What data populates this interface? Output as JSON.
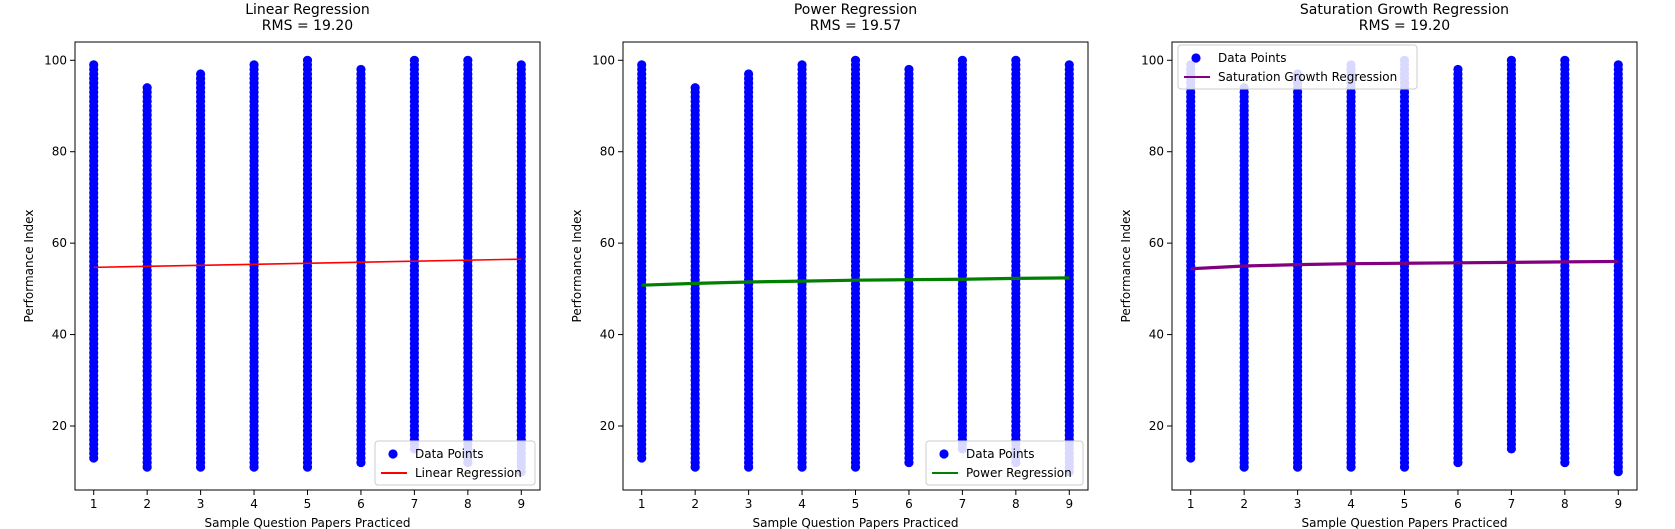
{
  "chart_data": [
    {
      "type": "scatter",
      "title": "Linear Regression",
      "subtitle": "RMS = 19.20",
      "xlabel": "Sample Question Papers Practiced",
      "ylabel": "Performance Index",
      "xlim": [
        0.65,
        9.35
      ],
      "ylim": [
        6,
        104
      ],
      "xticks": [
        1,
        2,
        3,
        4,
        5,
        6,
        7,
        8,
        9
      ],
      "yticks": [
        20,
        40,
        60,
        80,
        100
      ],
      "legend_position": "lower-right",
      "point_color": "#0000ff",
      "points": [
        {
          "x": 1,
          "min": 13,
          "max": 99
        },
        {
          "x": 2,
          "min": 11,
          "max": 94
        },
        {
          "x": 3,
          "min": 11,
          "max": 97
        },
        {
          "x": 4,
          "min": 11,
          "max": 99
        },
        {
          "x": 5,
          "min": 11,
          "max": 100
        },
        {
          "x": 6,
          "min": 12,
          "max": 98
        },
        {
          "x": 7,
          "min": 15,
          "max": 100
        },
        {
          "x": 8,
          "min": 12,
          "max": 100
        },
        {
          "x": 9,
          "min": 10,
          "max": 99
        }
      ],
      "series": [
        {
          "name": "Data Points",
          "kind": "scatter",
          "color": "#0000ff"
        },
        {
          "name": "Linear Regression",
          "kind": "line",
          "color": "#ff0000",
          "x": [
            1,
            9
          ],
          "y": [
            54.7,
            56.5
          ]
        }
      ]
    },
    {
      "type": "scatter",
      "title": "Power Regression",
      "subtitle": "RMS = 19.57",
      "xlabel": "Sample Question Papers Practiced",
      "ylabel": "Performance Index",
      "xlim": [
        0.65,
        9.35
      ],
      "ylim": [
        6,
        104
      ],
      "xticks": [
        1,
        2,
        3,
        4,
        5,
        6,
        7,
        8,
        9
      ],
      "yticks": [
        20,
        40,
        60,
        80,
        100
      ],
      "legend_position": "lower-right",
      "point_color": "#0000ff",
      "points": [
        {
          "x": 1,
          "min": 13,
          "max": 99
        },
        {
          "x": 2,
          "min": 11,
          "max": 94
        },
        {
          "x": 3,
          "min": 11,
          "max": 97
        },
        {
          "x": 4,
          "min": 11,
          "max": 99
        },
        {
          "x": 5,
          "min": 11,
          "max": 100
        },
        {
          "x": 6,
          "min": 12,
          "max": 98
        },
        {
          "x": 7,
          "min": 15,
          "max": 100
        },
        {
          "x": 8,
          "min": 12,
          "max": 100
        },
        {
          "x": 9,
          "min": 10,
          "max": 99
        }
      ],
      "series": [
        {
          "name": "Data Points",
          "kind": "scatter",
          "color": "#0000ff"
        },
        {
          "name": "Power Regression",
          "kind": "line",
          "color": "#008000",
          "x": [
            1,
            2,
            3,
            4,
            5,
            6,
            7,
            8,
            9
          ],
          "y": [
            50.8,
            51.2,
            51.5,
            51.7,
            51.9,
            52.0,
            52.1,
            52.3,
            52.4
          ]
        }
      ]
    },
    {
      "type": "scatter",
      "title": "Saturation Growth Regression",
      "subtitle": "RMS = 19.20",
      "xlabel": "Sample Question Papers Practiced",
      "ylabel": "Performance Index",
      "xlim": [
        0.65,
        9.35
      ],
      "ylim": [
        6,
        104
      ],
      "xticks": [
        1,
        2,
        3,
        4,
        5,
        6,
        7,
        8,
        9
      ],
      "yticks": [
        20,
        40,
        60,
        80,
        100
      ],
      "legend_position": "upper-left",
      "point_color": "#0000ff",
      "points": [
        {
          "x": 1,
          "min": 13,
          "max": 99
        },
        {
          "x": 2,
          "min": 11,
          "max": 94
        },
        {
          "x": 3,
          "min": 11,
          "max": 97
        },
        {
          "x": 4,
          "min": 11,
          "max": 99
        },
        {
          "x": 5,
          "min": 11,
          "max": 100
        },
        {
          "x": 6,
          "min": 12,
          "max": 98
        },
        {
          "x": 7,
          "min": 15,
          "max": 100
        },
        {
          "x": 8,
          "min": 12,
          "max": 100
        },
        {
          "x": 9,
          "min": 10,
          "max": 99
        }
      ],
      "series": [
        {
          "name": "Data Points",
          "kind": "scatter",
          "color": "#0000ff"
        },
        {
          "name": "Saturation Growth Regression",
          "kind": "line",
          "color": "#800080",
          "x": [
            1,
            2,
            3,
            4,
            5,
            6,
            7,
            8,
            9
          ],
          "y": [
            54.4,
            55.0,
            55.3,
            55.5,
            55.6,
            55.7,
            55.8,
            55.9,
            56.0
          ]
        }
      ]
    }
  ]
}
